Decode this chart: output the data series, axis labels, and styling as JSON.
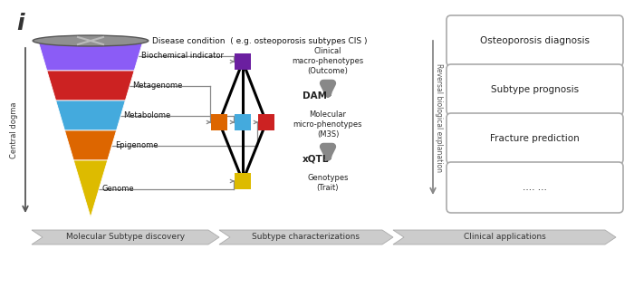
{
  "title_label": "i",
  "bg_color": "#ffffff",
  "cone_colors": [
    "#8B5CF6",
    "#CC2222",
    "#44AADD",
    "#DD6600",
    "#DDBB00"
  ],
  "cone_labels": [
    "Biochemical indicator",
    "Metagenome",
    "Metabolome",
    "Epigenome",
    "Genome"
  ],
  "disease_label": "Disease condition  ( e.g. osteoporosis subtypes CIS )",
  "central_dogma_label": "Central dogma",
  "cube_colors": {
    "top": "#6B1FA0",
    "middle_left": "#DD6600",
    "middle_center": "#44AADD",
    "middle_right": "#CC2222",
    "bottom": "#DDBB00"
  },
  "flow_labels": [
    "Clinical\nmacro-phenotypes\n(Outcome)",
    "Molecular\nmicro-phenotypes\n(M3S)",
    "Genotypes\n(Trait)"
  ],
  "flow_arrows": [
    "DAM",
    "xQTL"
  ],
  "right_boxes": [
    "Osteoporosis diagnosis",
    "Subtype prognosis",
    "Fracture prediction",
    ".... ..."
  ],
  "reversal_label": "Reversal biological explanation",
  "bottom_arrows": [
    "Molecular Subtype discovery",
    "Subtype characterizations",
    "Clinical applications"
  ],
  "arrow_color": "#999999",
  "box_border_color": "#aaaaaa",
  "text_color": "#222222",
  "gray_dark": "#555555"
}
